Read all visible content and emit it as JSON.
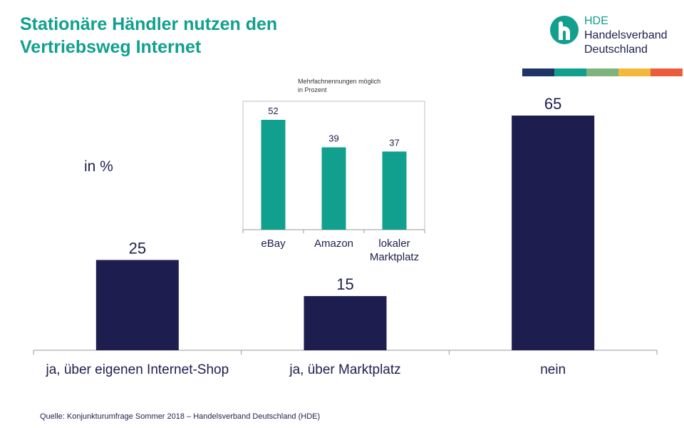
{
  "title_lines": [
    "Stationäre Händler nutzen den",
    "Vertriebsweg Internet"
  ],
  "logo": {
    "abbr": "HDE",
    "line1": "Handelsverband",
    "line2": "Deutschland"
  },
  "stripe_colors": [
    "#1e3466",
    "#11a08d",
    "#7db47d",
    "#f5b73a",
    "#ea5c3c"
  ],
  "unit_label": "in %",
  "source": "Quelle: Konjunkturumfrage Sommer 2018 – Handelsverband Deutschland (HDE)",
  "chart_data": [
    {
      "type": "bar",
      "categories": [
        "ja, über eigenen Internet-Shop",
        "ja, über Marktplatz",
        "nein"
      ],
      "values": [
        25,
        15,
        65
      ],
      "ylim": [
        0,
        65
      ],
      "color": "#1e1d4f",
      "grid": false
    },
    {
      "type": "bar",
      "note": [
        "Mehrfachnennungen möglich",
        "in Prozent"
      ],
      "categories": [
        [
          "eBay"
        ],
        [
          "Amazon"
        ],
        [
          "lokaler",
          "Marktplatz"
        ]
      ],
      "values": [
        52,
        39,
        37
      ],
      "ylim": [
        0,
        52
      ],
      "color": "#11a08d",
      "grid": false
    }
  ]
}
